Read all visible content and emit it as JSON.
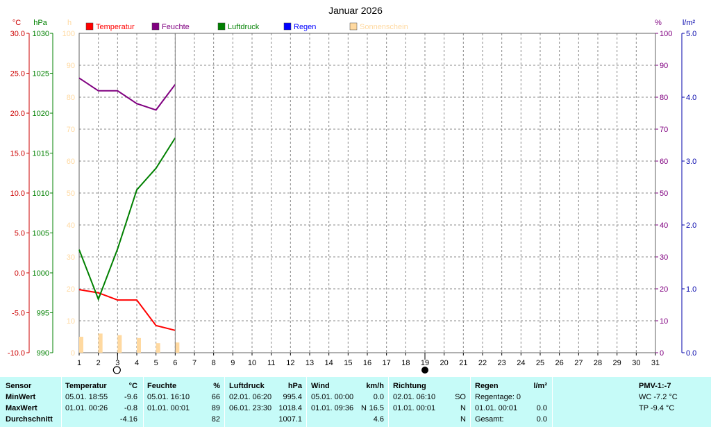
{
  "chart_data": {
    "type": "line",
    "title": "Januar 2026",
    "x": [
      1,
      2,
      3,
      4,
      5,
      6,
      7,
      8,
      9,
      10,
      11,
      12,
      13,
      14,
      15,
      16,
      17,
      18,
      19,
      20,
      21,
      22,
      23,
      24,
      25,
      26,
      27,
      28,
      29,
      30,
      31
    ],
    "axes": {
      "temp_unit": "°C",
      "temp_range": [
        -10,
        30
      ],
      "temp_ticks": [
        "30.0",
        "25.0",
        "20.0",
        "15.0",
        "10.0",
        "5.0",
        "0.0",
        "-5.0",
        "-10.0"
      ],
      "pressure_unit": "hPa",
      "pressure_range": [
        990,
        1030
      ],
      "pressure_ticks": [
        "1030",
        "1025",
        "1020",
        "1015",
        "1010",
        "1005",
        "1000",
        "995",
        "990"
      ],
      "sun_unit": "h",
      "sun_range": [
        0,
        100
      ],
      "sun_ticks": [
        "100",
        "90",
        "80",
        "70",
        "60",
        "50",
        "40",
        "30",
        "20",
        "10",
        "0"
      ],
      "humidity_unit": "%",
      "humidity_range": [
        0,
        100
      ],
      "humidity_ticks": [
        "100",
        "90",
        "80",
        "70",
        "60",
        "50",
        "40",
        "30",
        "20",
        "10",
        "0"
      ],
      "rain_unit": "l/m²",
      "rain_range": [
        0,
        5
      ],
      "rain_ticks": [
        "5.0",
        "4.0",
        "3.0",
        "2.0",
        "1.0",
        "0.0"
      ]
    },
    "grid": true,
    "legend": [
      {
        "name": "Temperatur",
        "color": "#ff0000"
      },
      {
        "name": "Feuchte",
        "color": "#800080"
      },
      {
        "name": "Luftdruck",
        "color": "#008000"
      },
      {
        "name": "Regen",
        "color": "#0000ff"
      },
      {
        "name": "Sonnenschein",
        "color": "#ffd9a0"
      }
    ],
    "series": [
      {
        "name": "Temperatur",
        "axis": "temp",
        "x": [
          1,
          2,
          3,
          4,
          5,
          6
        ],
        "values": [
          -2.1,
          -2.5,
          -3.4,
          -3.4,
          -6.6,
          -7.2
        ]
      },
      {
        "name": "Feuchte",
        "axis": "humidity",
        "x": [
          1,
          2,
          3,
          4,
          5,
          6
        ],
        "values": [
          86,
          82,
          82,
          78,
          76,
          84
        ]
      },
      {
        "name": "Luftdruck",
        "axis": "pressure",
        "x": [
          1,
          2,
          3,
          4,
          5,
          6
        ],
        "values": [
          1002.9,
          996.7,
          1003.0,
          1010.4,
          1013.1,
          1016.9
        ]
      },
      {
        "name": "Sonnenschein",
        "axis": "sun",
        "type": "bar",
        "x": [
          1,
          2,
          3,
          4,
          5,
          6
        ],
        "values": [
          5.0,
          6.0,
          5.5,
          4.6,
          3.0,
          3.2
        ]
      }
    ],
    "moon_markers": [
      {
        "day": 3,
        "phase": "full-moon"
      },
      {
        "day": 19,
        "phase": "new-moon"
      }
    ]
  },
  "stats": {
    "row_labels": {
      "title": "Sensor",
      "min": "MinWert",
      "max": "MaxWert",
      "avg": "Durchschnitt"
    },
    "temperature": {
      "label": "Temperatur",
      "unit": "°C",
      "min_time": "05.01.  18:55",
      "min_val": "-9.6",
      "max_time": "01.01.  00:26",
      "max_val": "-0.8",
      "avg": "-4.16"
    },
    "humidity": {
      "label": "Feuchte",
      "unit": "%",
      "min_time": "05.01.  16:10",
      "min_val": "66",
      "max_time": "01.01.  00:01",
      "max_val": "89",
      "avg": "82"
    },
    "pressure": {
      "label": "Luftdruck",
      "unit": "hPa",
      "min_time": "02.01.  06:20",
      "min_val": "995.4",
      "max_time": "06.01.  23:30",
      "max_val": "1018.4",
      "avg": "1007.1"
    },
    "wind": {
      "label": "Wind",
      "unit": "km/h",
      "min_time": "05.01.  00:00",
      "min_val": "0.0",
      "max_time": "01.01.  09:36",
      "max_dir": "N",
      "max_val": "16.5",
      "avg": "4.6"
    },
    "direction": {
      "label": "Richtung",
      "min_time": "02.01.  06:10",
      "min_val": "SO",
      "max_time": "01.01.  00:01",
      "max_val": "N",
      "avg": "N"
    },
    "rain": {
      "label": "Regen",
      "unit": "l/m²",
      "days": "Regentage: 0",
      "max_time": "01.01.  00:01",
      "max_val": "0.0",
      "total_label": "Gesamt:",
      "total_val": "0.0"
    },
    "pmv": {
      "label": "PMV-1:-7",
      "wc": "WC -7.2 °C",
      "tp": "TP -9.4 °C"
    }
  }
}
